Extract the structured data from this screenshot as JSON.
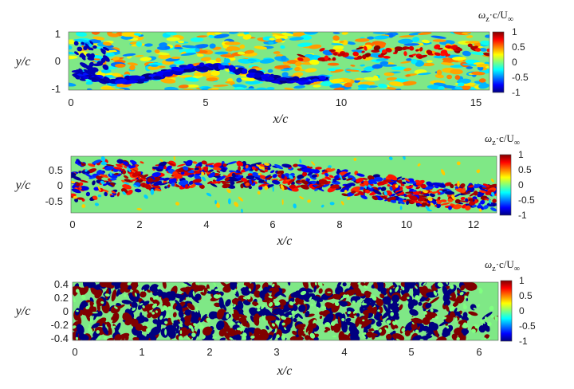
{
  "chart_data": [
    {
      "type": "heatmap",
      "title": "",
      "xlabel": "x/c",
      "ylabel": "y/c",
      "xlim": [
        0,
        15.6
      ],
      "ylim": [
        -1,
        1
      ],
      "xticks": [
        "0",
        "5",
        "10",
        "15"
      ],
      "xtick_values": [
        0,
        5,
        10,
        15
      ],
      "yticks": [
        "1",
        "0",
        "-1"
      ],
      "ytick_values": [
        1,
        0,
        -1
      ],
      "colorbar": {
        "label_var": "ω",
        "label_sub": "z",
        "label_rest": "·c/U",
        "label_sub2": "∞",
        "ticks": [
          "1",
          "0.5",
          "0",
          "-0.5",
          "-1"
        ],
        "tick_values": [
          1,
          0.5,
          0,
          -0.5,
          -1
        ],
        "range": [
          -1,
          1
        ],
        "colormap": "jet"
      },
      "colors": {
        "background_field": "#7fe886"
      },
      "pattern": {
        "description_values": "smooth, low-amplitude vorticity; negative band near lower surface, positive streaks in upper wake",
        "intensity": 0.55,
        "blob_scale": 0.45
      }
    },
    {
      "type": "heatmap",
      "title": "",
      "xlabel": "x/c",
      "ylabel": "y/c",
      "xlim": [
        0,
        12.8
      ],
      "ylim": [
        -0.8,
        0.8
      ],
      "xticks": [
        "0",
        "2",
        "4",
        "6",
        "8",
        "10",
        "12"
      ],
      "xtick_values": [
        0,
        2,
        4,
        6,
        8,
        10,
        12
      ],
      "yticks": [
        "0.5",
        "0",
        "-0.5"
      ],
      "ytick_values": [
        0.5,
        0,
        -0.5
      ],
      "colorbar": {
        "label_var": "ω",
        "label_sub": "z",
        "label_rest": "·c/U",
        "label_sub2": "∞",
        "ticks": [
          "1",
          "0.5",
          "0",
          "-0.5",
          "-1"
        ],
        "tick_values": [
          1,
          0.5,
          0,
          -0.5,
          -1
        ],
        "range": [
          -1,
          1
        ],
        "colormap": "jet"
      },
      "colors": {
        "background_field": "#7fe886"
      },
      "pattern": {
        "intensity": 1.0,
        "blob_scale": 0.3
      }
    },
    {
      "type": "heatmap",
      "title": "",
      "xlabel": "x/c",
      "ylabel": "y/c",
      "xlim": [
        0,
        6.25
      ],
      "ylim": [
        -0.42,
        0.42
      ],
      "xticks": [
        "0",
        "1",
        "2",
        "3",
        "4",
        "5",
        "6"
      ],
      "xtick_values": [
        0,
        1,
        2,
        3,
        4,
        5,
        6
      ],
      "yticks": [
        "0.4",
        "0.2",
        "0",
        "-0.2",
        "-0.4"
      ],
      "ytick_values": [
        0.4,
        0.2,
        0,
        -0.2,
        -0.4
      ],
      "colorbar": {
        "label_var": "ω",
        "label_sub": "z",
        "label_rest": "·c/U",
        "label_sub2": "∞",
        "ticks": [
          "1",
          "0.5",
          "0",
          "-0.5",
          "-1"
        ],
        "tick_values": [
          1,
          0.5,
          0,
          -0.5,
          -1
        ],
        "range": [
          -1,
          1
        ],
        "colormap": "jet"
      },
      "colors": {
        "background_field": "#7fe886"
      },
      "pattern": {
        "intensity": 1.0,
        "blob_scale": 0.45
      }
    }
  ]
}
